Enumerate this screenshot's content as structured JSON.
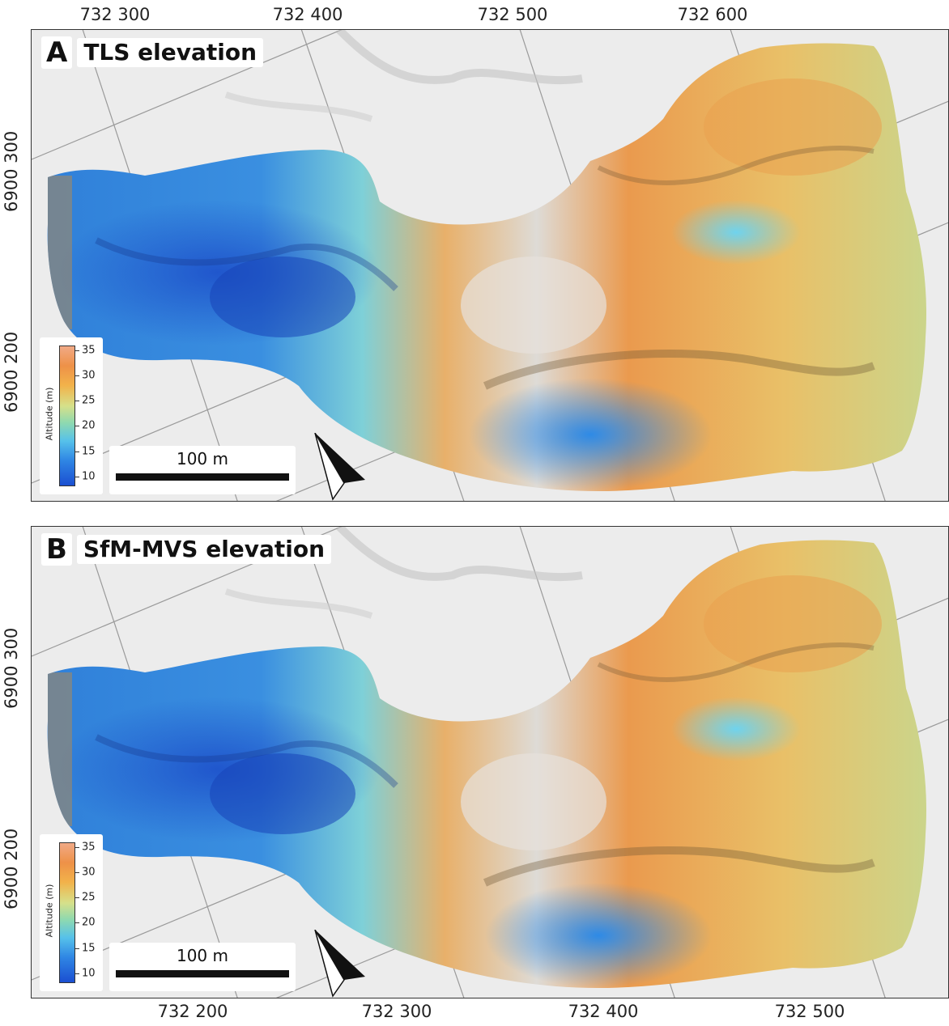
{
  "top_axis_labels": [
    {
      "text": "732 300",
      "x": 142
    },
    {
      "text": "732 400",
      "x": 380
    },
    {
      "text": "732 500",
      "x": 633
    },
    {
      "text": "732 600",
      "x": 880
    }
  ],
  "bottom_axis_labels": [
    {
      "text": "732 200",
      "x": 238
    },
    {
      "text": "732 300",
      "x": 490
    },
    {
      "text": "732 400",
      "x": 745
    },
    {
      "text": "732 500",
      "x": 1000
    }
  ],
  "panels": [
    {
      "letter": "A",
      "title": "TLS elevation",
      "left_axis_labels": [
        "6900 300",
        "6900 200"
      ]
    },
    {
      "letter": "B",
      "title": "SfM-MVS elevation",
      "left_axis_labels": [
        "6900 300",
        "6900 200"
      ]
    }
  ],
  "legend": {
    "title": "Altitude (m)",
    "min": 8,
    "max": 36,
    "ticks": [
      "35",
      "30",
      "25",
      "20",
      "15",
      "10"
    ],
    "colors": [
      "#1b4fd1",
      "#2f86e4",
      "#56c1ea",
      "#8ed9b0",
      "#d6e08a",
      "#f2b24a",
      "#ee9148",
      "#f1aa86"
    ]
  },
  "scalebar": {
    "label": "100 m"
  },
  "north_arrow": {
    "icon": "north-arrow-icon"
  }
}
